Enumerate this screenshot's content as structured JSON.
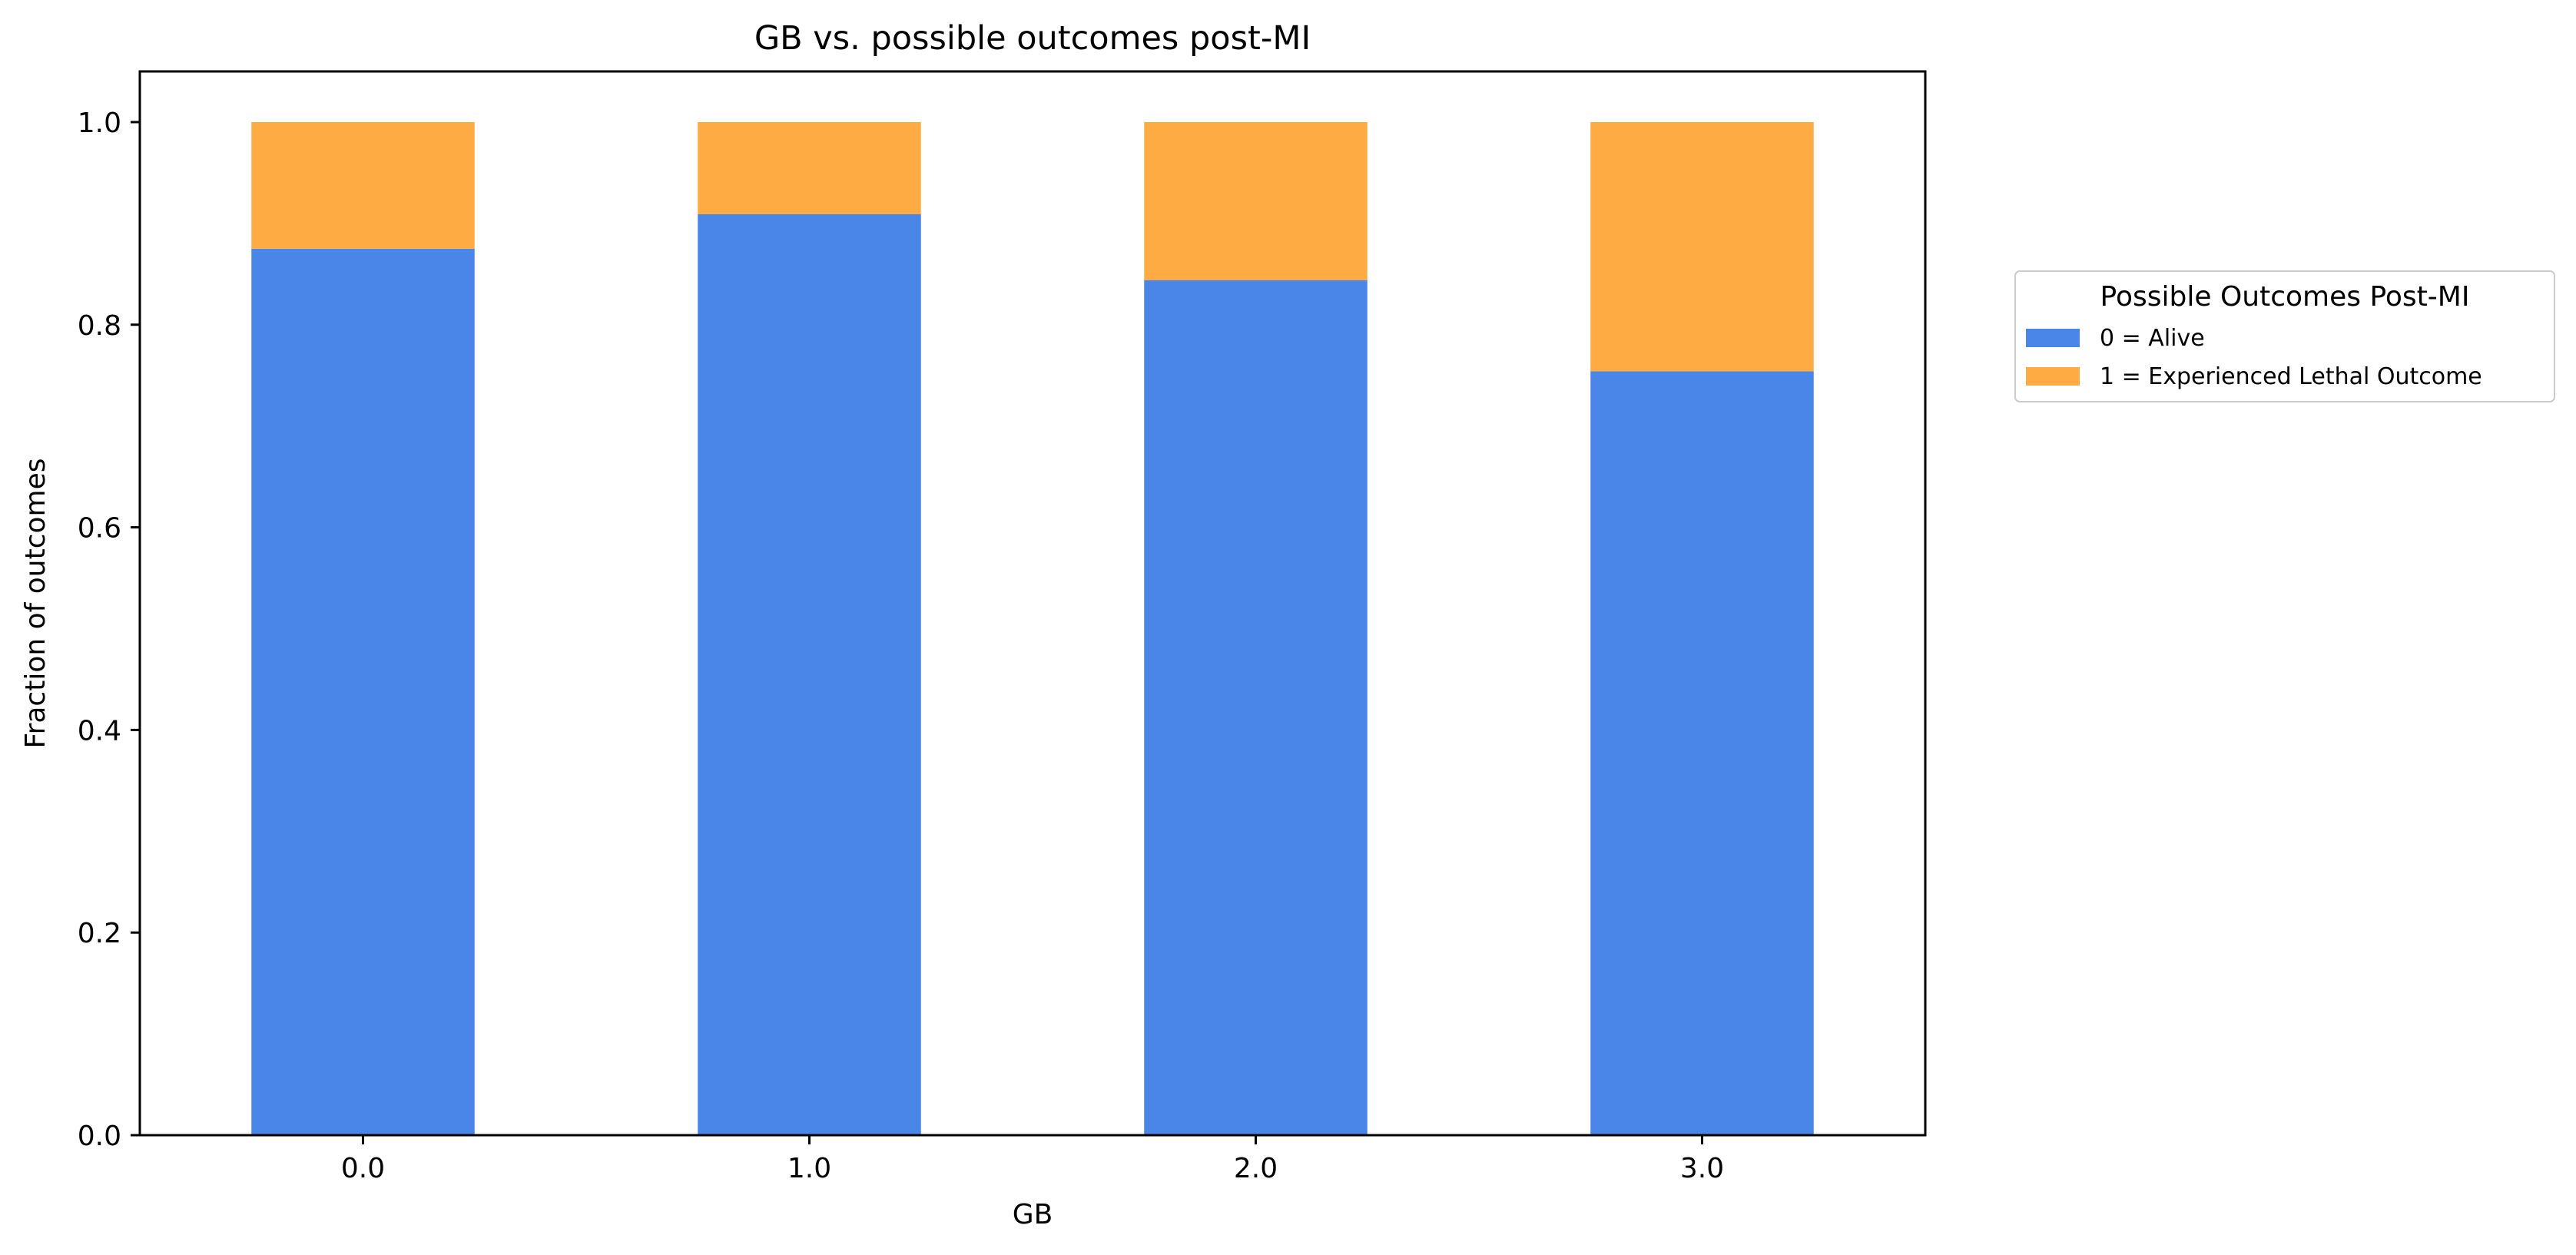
{
  "chart_data": {
    "type": "bar",
    "stacked": true,
    "title": "GB vs. possible outcomes post-MI",
    "xlabel": "GB",
    "ylabel": "Fraction of outcomes",
    "categories": [
      "0.0",
      "1.0",
      "2.0",
      "3.0"
    ],
    "ylim": [
      0,
      1.05
    ],
    "yticks": [
      "0.0",
      "0.2",
      "0.4",
      "0.6",
      "0.8",
      "1.0"
    ],
    "series": [
      {
        "name": "0 = Alive",
        "values": [
          0.875,
          0.909,
          0.844,
          0.754
        ],
        "color": "#4a86e8"
      },
      {
        "name": "1 = Experienced Lethal Outcome",
        "values": [
          0.125,
          0.091,
          0.156,
          0.246
        ],
        "color": "#ffab44"
      }
    ],
    "legend": {
      "title": "Possible Outcomes Post-MI",
      "placement": "outside-right"
    },
    "grid": false
  }
}
